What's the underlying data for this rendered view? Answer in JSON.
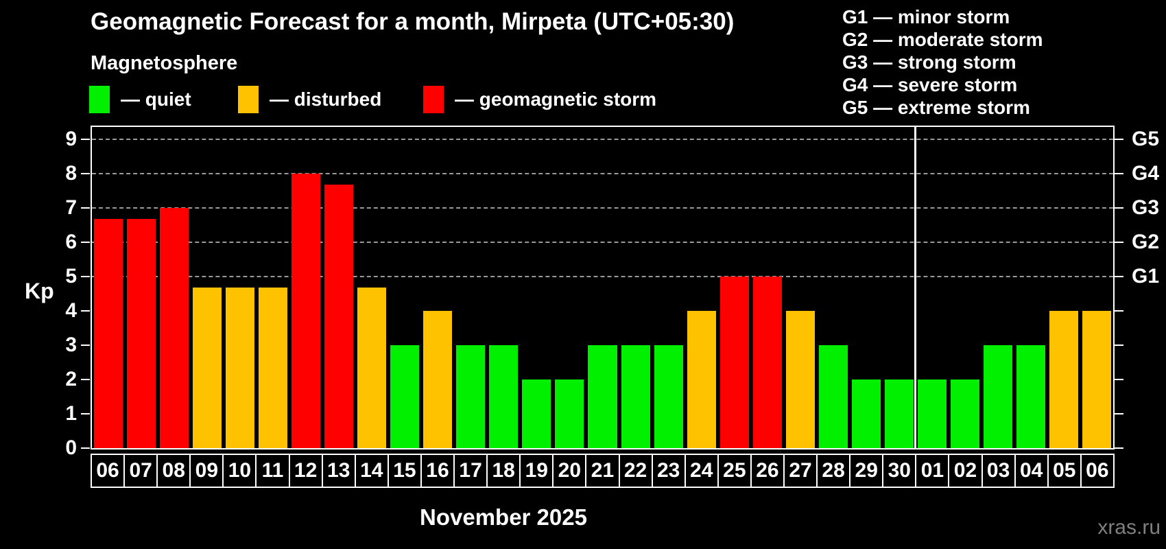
{
  "header": {
    "title": "Geomagnetic Forecast for a month, Mirpeta (UTC+05:30)",
    "subtitle": "Magnetosphere"
  },
  "legend": {
    "items": [
      {
        "name": "quiet",
        "label": "— quiet",
        "color": "#00F000"
      },
      {
        "name": "disturbed",
        "label": "— disturbed",
        "color": "#FFC200"
      },
      {
        "name": "storm",
        "label": "— geomagnetic storm",
        "color": "#FF0000"
      }
    ]
  },
  "g_scale_legend": {
    "lines": [
      "G1 — minor storm",
      "G2 — moderate storm",
      "G3 — strong storm",
      "G4 — severe storm",
      "G5 — extreme storm"
    ]
  },
  "chart_data": {
    "type": "bar",
    "title": "Geomagnetic Forecast for a month, Mirpeta (UTC+05:30)",
    "ylabel": "Kp",
    "xlabel": "November 2025",
    "ylim": [
      0,
      9
    ],
    "yticks": [
      0,
      1,
      2,
      3,
      4,
      5,
      6,
      7,
      8,
      9
    ],
    "gridlines_at": [
      5,
      6,
      7,
      8,
      9
    ],
    "grid": "horizontal dashed at Kp 5–9 only",
    "legend_position": "top-left",
    "right_axis_labels": [
      {
        "kp": 5,
        "label": "G1"
      },
      {
        "kp": 6,
        "label": "G2"
      },
      {
        "kp": 7,
        "label": "G3"
      },
      {
        "kp": 8,
        "label": "G4"
      },
      {
        "kp": 9,
        "label": "G5"
      }
    ],
    "categories": [
      "06",
      "07",
      "08",
      "09",
      "10",
      "11",
      "12",
      "13",
      "14",
      "15",
      "16",
      "17",
      "18",
      "19",
      "20",
      "21",
      "22",
      "23",
      "24",
      "25",
      "26",
      "27",
      "28",
      "29",
      "30",
      "01",
      "02",
      "03",
      "04",
      "05",
      "06"
    ],
    "values": [
      6.67,
      6.67,
      7,
      4.67,
      4.67,
      4.67,
      8,
      7.67,
      4.67,
      3,
      4,
      3,
      3,
      2,
      2,
      3,
      3,
      3,
      4,
      5,
      5,
      4,
      3,
      2,
      2,
      2,
      2,
      3,
      3,
      4,
      4
    ],
    "statuses": [
      "storm",
      "storm",
      "storm",
      "disturbed",
      "disturbed",
      "disturbed",
      "storm",
      "storm",
      "disturbed",
      "quiet",
      "disturbed",
      "quiet",
      "quiet",
      "quiet",
      "quiet",
      "quiet",
      "quiet",
      "quiet",
      "disturbed",
      "storm",
      "storm",
      "disturbed",
      "quiet",
      "quiet",
      "quiet",
      "quiet",
      "quiet",
      "quiet",
      "quiet",
      "disturbed",
      "disturbed"
    ],
    "month_separator_after_index": 24
  },
  "footer": {
    "month_label": "November 2025",
    "watermark": "xras.ru"
  },
  "colors": {
    "background": "#000000",
    "text": "#FFFFFF",
    "axis": "#FFFFFF",
    "grid": "#9A9A9A",
    "quiet": "#00F000",
    "disturbed": "#FFC200",
    "storm": "#FF0000",
    "watermark": "#7F7F7F"
  }
}
